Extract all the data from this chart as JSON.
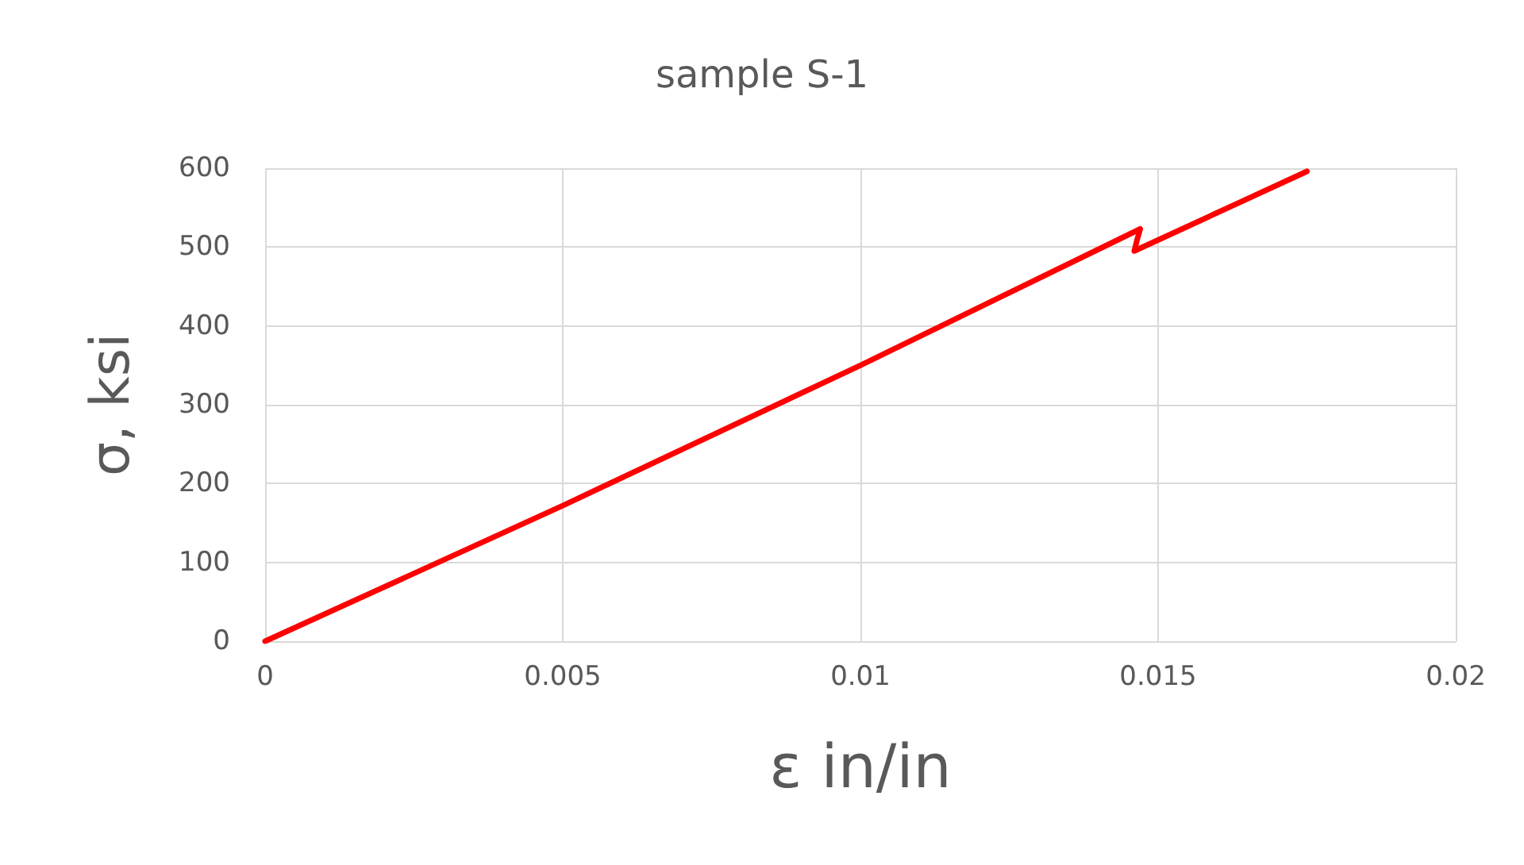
{
  "chart_data": {
    "type": "line",
    "title": "sample S-1",
    "xlabel": "ε in/in",
    "ylabel": "σ, ksi",
    "series": [
      {
        "color": "#ff0000",
        "x": [
          0,
          0.005,
          0.01,
          0.0147,
          0.01465,
          0.0146,
          0.0175
        ],
        "values": [
          0,
          172,
          350,
          523,
          510,
          495,
          596
        ]
      }
    ],
    "xlim": [
      0,
      0.02
    ],
    "xticks": [
      0,
      0.005,
      0.01,
      0.015,
      0.02
    ],
    "ylim": [
      0,
      600
    ],
    "yticks": [
      0,
      100,
      200,
      300,
      400,
      500,
      600
    ],
    "grid": true,
    "marker": "none",
    "line_style": "solid"
  }
}
